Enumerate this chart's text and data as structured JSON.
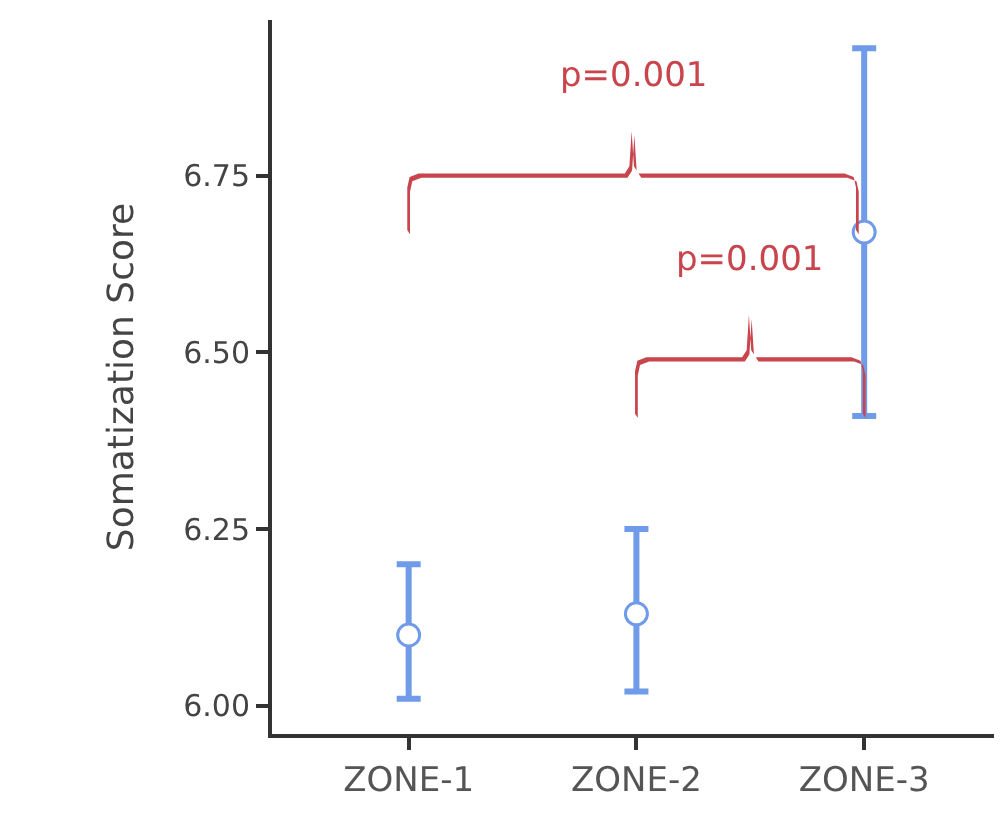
{
  "chart_data": {
    "type": "scatter",
    "ylabel": "Somatization Score",
    "categories": [
      "ZONE-1",
      "ZONE-2",
      "ZONE-3"
    ],
    "series": [
      {
        "color": "#6f9be8",
        "values": [
          6.1,
          6.13,
          6.67
        ],
        "errors": [
          [
            6.01,
            6.2
          ],
          [
            6.02,
            6.25
          ],
          [
            6.41,
            6.93
          ]
        ]
      }
    ],
    "ylim": [
      5.96,
      6.97
    ],
    "yticks": [
      {
        "value": 6.0,
        "label": "6.00"
      },
      6.25,
      {
        "value": 6.5,
        "label": "6.50"
      },
      6.75
    ],
    "marker": "circle",
    "annotations": [
      "p=0.001",
      "p=0.001"
    ]
  }
}
